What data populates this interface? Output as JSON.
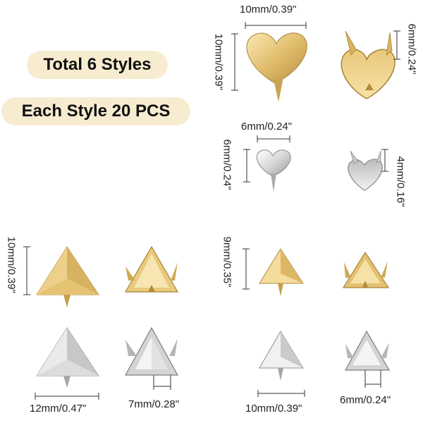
{
  "badges": {
    "total_styles": "Total 6 Styles",
    "each_style": "Each Style 20 PCS"
  },
  "dimensions": {
    "big_heart_width": "10mm/0.39\"",
    "big_heart_height": "10mm/0.39\"",
    "big_heart_back_height": "6mm/0.24\"",
    "small_heart_width": "6mm/0.24\"",
    "small_heart_height": "6mm/0.24\"",
    "small_heart_back_height": "4mm/0.16\"",
    "big_pyramid_height": "10mm/0.39\"",
    "big_pyramid_width": "12mm/0.47\"",
    "big_pyramid_prong": "7mm/0.28\"",
    "small_pyramid_height": "9mm/0.35\"",
    "small_pyramid_width": "10mm/0.39\"",
    "small_pyramid_prong": "6mm/0.24\""
  },
  "colors": {
    "gold_light": "#f3dc9c",
    "gold_mid": "#dcb866",
    "gold_dark": "#b38a3a",
    "silver_light": "#f4f4f4",
    "silver_mid": "#cfcfcf",
    "silver_dark": "#8e8e8e"
  }
}
